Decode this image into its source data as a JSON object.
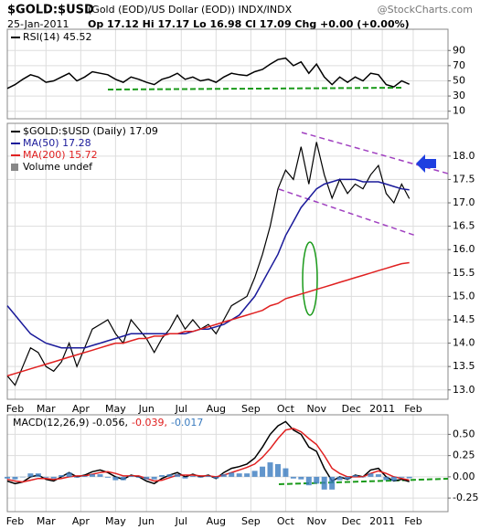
{
  "header": {
    "symbol": "$GOLD:$USD",
    "description": "(Gold (EOD)/US Dollar (EOD)) INDX/INDX",
    "watermark": "@StockCharts.com",
    "date": "25-Jan-2011",
    "quote": "Op 17.12 Hi 17.17 Lo 16.98 Cl 17.09 Chg +0.00 (+0.00%)"
  },
  "chart_data": [
    {
      "type": "line",
      "series": [
        {
          "name": "RSI(14) 45.52",
          "color": "#000000",
          "values": [
            40,
            45,
            52,
            58,
            55,
            48,
            50,
            55,
            60,
            50,
            55,
            62,
            60,
            58,
            52,
            48,
            55,
            52,
            48,
            45,
            52,
            55,
            60,
            52,
            55,
            50,
            52,
            48,
            55,
            60,
            58,
            57,
            62,
            65,
            72,
            78,
            80,
            70,
            75,
            60,
            72,
            55,
            45,
            55,
            48,
            55,
            50,
            60,
            58,
            45,
            42,
            50,
            45.52
          ]
        }
      ],
      "ylim": [
        0,
        118
      ],
      "yticks": [
        10,
        30,
        50,
        70,
        90
      ],
      "grid": true
    },
    {
      "type": "line",
      "x": [
        0,
        1,
        2,
        3,
        4,
        5,
        6,
        7,
        8,
        9,
        10,
        11,
        12,
        13,
        14,
        15,
        16,
        17,
        18,
        19,
        20,
        21,
        22,
        23,
        24,
        25,
        26,
        27,
        28,
        29,
        30,
        31,
        32,
        33,
        34,
        35,
        36,
        37,
        38,
        39,
        40,
        41,
        42,
        43,
        44,
        45,
        46,
        47,
        48,
        49,
        50,
        51,
        52
      ],
      "xlim": [
        0,
        57
      ],
      "xticks": [
        {
          "value": 1,
          "label": "Feb"
        },
        {
          "value": 5,
          "label": "Mar"
        },
        {
          "value": 9.5,
          "label": "Apr"
        },
        {
          "value": 14,
          "label": "May"
        },
        {
          "value": 18,
          "label": "Jun"
        },
        {
          "value": 22.5,
          "label": "Jul"
        },
        {
          "value": 27,
          "label": "Aug"
        },
        {
          "value": 31.5,
          "label": "Sep"
        },
        {
          "value": 36,
          "label": "Oct"
        },
        {
          "value": 40,
          "label": "Nov"
        },
        {
          "value": 44.5,
          "label": "Dec"
        },
        {
          "value": 48.5,
          "label": "2011"
        },
        {
          "value": 52.5,
          "label": "Feb"
        }
      ],
      "series": [
        {
          "name": "$GOLD:$USD (Daily) 17.09",
          "color": "#000000",
          "values": [
            13.3,
            13.1,
            13.5,
            13.9,
            13.8,
            13.5,
            13.4,
            13.6,
            14.0,
            13.5,
            13.9,
            14.3,
            14.4,
            14.5,
            14.2,
            14.0,
            14.5,
            14.3,
            14.1,
            13.8,
            14.1,
            14.3,
            14.6,
            14.3,
            14.5,
            14.3,
            14.4,
            14.2,
            14.5,
            14.8,
            14.9,
            15.0,
            15.4,
            15.9,
            16.5,
            17.3,
            17.7,
            17.5,
            18.2,
            17.4,
            18.3,
            17.6,
            17.1,
            17.5,
            17.2,
            17.4,
            17.3,
            17.6,
            17.8,
            17.2,
            17.0,
            17.4,
            17.09
          ]
        },
        {
          "name": "MA(50) 17.28",
          "color": "#1a1a9a",
          "values": [
            14.8,
            14.6,
            14.4,
            14.2,
            14.1,
            14.0,
            13.95,
            13.9,
            13.9,
            13.9,
            13.9,
            13.95,
            14.0,
            14.05,
            14.1,
            14.15,
            14.2,
            14.2,
            14.2,
            14.2,
            14.2,
            14.2,
            14.2,
            14.2,
            14.25,
            14.3,
            14.3,
            14.35,
            14.4,
            14.5,
            14.6,
            14.8,
            15.0,
            15.3,
            15.6,
            15.9,
            16.3,
            16.6,
            16.9,
            17.1,
            17.3,
            17.4,
            17.45,
            17.5,
            17.5,
            17.5,
            17.45,
            17.45,
            17.45,
            17.4,
            17.35,
            17.3,
            17.28
          ]
        },
        {
          "name": "MA(200) 15.72",
          "color": "#e02020",
          "values": [
            13.3,
            13.35,
            13.4,
            13.45,
            13.5,
            13.55,
            13.6,
            13.65,
            13.7,
            13.75,
            13.8,
            13.85,
            13.9,
            13.95,
            14.0,
            14.0,
            14.05,
            14.1,
            14.1,
            14.15,
            14.15,
            14.2,
            14.2,
            14.25,
            14.25,
            14.3,
            14.35,
            14.4,
            14.45,
            14.5,
            14.55,
            14.6,
            14.65,
            14.7,
            14.8,
            14.85,
            14.95,
            15.0,
            15.05,
            15.1,
            15.15,
            15.2,
            15.25,
            15.3,
            15.35,
            15.4,
            15.45,
            15.5,
            15.55,
            15.6,
            15.65,
            15.7,
            15.72
          ]
        }
      ],
      "legend_note": "Volume undef",
      "ylim": [
        12.8,
        18.7
      ],
      "yticks": [
        {
          "value": 13,
          "label": "13.0"
        },
        {
          "value": 13.5,
          "label": "13.5"
        },
        {
          "value": 14,
          "label": "14.0"
        },
        {
          "value": 14.5,
          "label": "14.5"
        },
        {
          "value": 15,
          "label": "15.0"
        },
        {
          "value": 15.5,
          "label": "15.5"
        },
        {
          "value": 16,
          "label": "16.0"
        },
        {
          "value": 16.5,
          "label": "16.5"
        },
        {
          "value": 17,
          "label": "17.0"
        },
        {
          "value": 17.5,
          "label": "17.5"
        },
        {
          "value": 18,
          "label": "18.0"
        }
      ],
      "grid": true
    },
    {
      "type": "line",
      "series": [
        {
          "name": "MACD(12,26,9) -0.056,",
          "color": "#000000",
          "values": [
            -0.05,
            -0.08,
            -0.06,
            0.0,
            0.02,
            -0.03,
            -0.05,
            0.0,
            0.05,
            0.0,
            0.02,
            0.06,
            0.08,
            0.05,
            0.0,
            -0.03,
            0.02,
            0.0,
            -0.05,
            -0.08,
            -0.02,
            0.02,
            0.05,
            0.0,
            0.03,
            0.0,
            0.02,
            -0.02,
            0.05,
            0.1,
            0.12,
            0.15,
            0.22,
            0.35,
            0.5,
            0.6,
            0.65,
            0.55,
            0.5,
            0.35,
            0.3,
            0.1,
            -0.05,
            0.0,
            -0.03,
            0.02,
            0.0,
            0.08,
            0.1,
            0.0,
            -0.05,
            -0.03,
            -0.056
          ]
        },
        {
          "name": "-0.039,",
          "color": "#e02020",
          "values": [
            -0.03,
            -0.05,
            -0.06,
            -0.04,
            -0.02,
            -0.02,
            -0.03,
            -0.02,
            0.0,
            0.01,
            0.01,
            0.03,
            0.05,
            0.06,
            0.04,
            0.01,
            0.01,
            0.01,
            -0.02,
            -0.05,
            -0.04,
            -0.01,
            0.02,
            0.02,
            0.02,
            0.01,
            0.01,
            0.0,
            0.02,
            0.05,
            0.08,
            0.11,
            0.15,
            0.23,
            0.33,
            0.45,
            0.55,
            0.57,
            0.53,
            0.45,
            0.38,
            0.25,
            0.1,
            0.04,
            0.0,
            0.0,
            0.0,
            0.04,
            0.07,
            0.04,
            0.0,
            -0.02,
            -0.039
          ]
        },
        {
          "name": "-0.017",
          "color": "#3a7bbf",
          "type": "bar",
          "values": [
            -0.02,
            -0.03,
            0.0,
            0.04,
            0.04,
            -0.01,
            -0.02,
            0.02,
            0.05,
            -0.01,
            0.01,
            0.03,
            0.03,
            -0.01,
            -0.04,
            -0.04,
            0.01,
            -0.01,
            -0.03,
            -0.03,
            0.02,
            0.03,
            0.03,
            -0.02,
            0.01,
            -0.01,
            0.01,
            -0.02,
            0.03,
            0.05,
            0.04,
            0.04,
            0.07,
            0.12,
            0.17,
            0.15,
            0.1,
            -0.02,
            -0.03,
            -0.1,
            -0.08,
            -0.15,
            -0.15,
            -0.04,
            -0.03,
            0.02,
            0.0,
            0.04,
            0.03,
            -0.04,
            -0.05,
            -0.01,
            -0.017
          ]
        }
      ],
      "ylim": [
        -0.41,
        0.73
      ],
      "yticks": [
        {
          "value": -0.25,
          "label": "-0.25"
        },
        {
          "value": 0,
          "label": "0.00"
        },
        {
          "value": 0.25,
          "label": "0.25"
        },
        {
          "value": 0.5,
          "label": "0.50"
        }
      ],
      "grid": true
    }
  ]
}
